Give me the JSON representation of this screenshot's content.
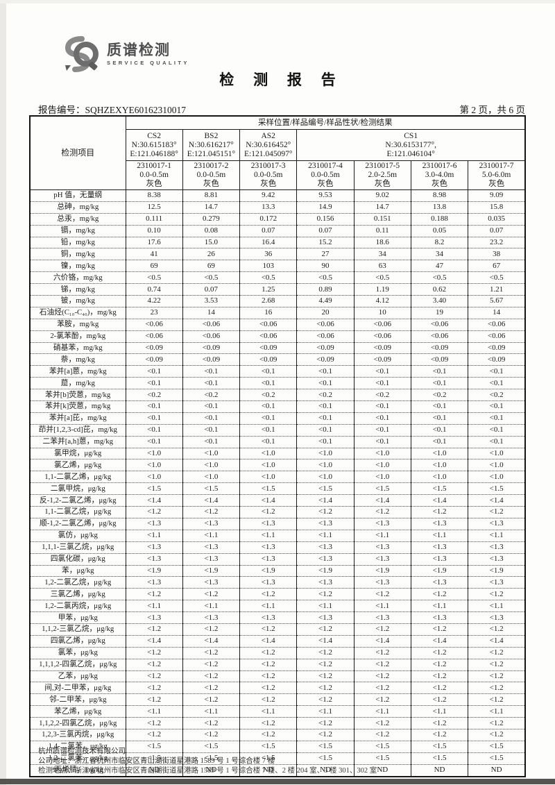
{
  "logo": {
    "mark": "SQ",
    "name_cn": "质谱检测",
    "name_en": "SERVICE QUALITY",
    "mark_color": "#8a8a8a",
    "mark_dark": "#5c5c5c"
  },
  "page": {
    "title": "检 测 报 告",
    "report_no_label": "报告编号：",
    "report_no": "SQHZEXYE60162310017",
    "page_info": "第 2 页，共 6 页"
  },
  "table": {
    "header": {
      "item_col": "检测项目",
      "span_title": "采样位置/样品编号/样品性状/检测结果",
      "locations": [
        {
          "name": "CS2",
          "lat": "N:30.615183°",
          "lon": "E:121.046188°",
          "span": 1
        },
        {
          "name": "BS2",
          "lat": "N:30.616217°",
          "lon": "E:121.045151°",
          "span": 1
        },
        {
          "name": "AS2",
          "lat": "N:30.616452°",
          "lon": "E:121.045097°",
          "span": 1
        },
        {
          "name": "CS1",
          "lat": "N:30.6153177°,",
          "lon": "E:121.046104°",
          "span": 4
        }
      ],
      "samples": [
        {
          "id": "2310017-1",
          "depth": "0.0-0.5m",
          "color": "灰色"
        },
        {
          "id": "2310017-2",
          "depth": "0.0-0.5m",
          "color": "灰色"
        },
        {
          "id": "2310017-3",
          "depth": "0.0-0.5m",
          "color": "灰色"
        },
        {
          "id": "2310017-4",
          "depth": "0.0-0.5m",
          "color": "灰色"
        },
        {
          "id": "2310017-5",
          "depth": "2.0-2.5m",
          "color": "灰色"
        },
        {
          "id": "2310017-6",
          "depth": "3.0-4.0m",
          "color": "灰色"
        },
        {
          "id": "2310017-7",
          "depth": "5.0-6.0m",
          "color": "灰色"
        }
      ]
    },
    "rows": [
      {
        "label": "pH 值，无量纲",
        "values": [
          "8.38",
          "8.81",
          "9.42",
          "9.53",
          "9.02",
          "8.98",
          "9.09"
        ]
      },
      {
        "label": "总砷，mg/kg",
        "values": [
          "12.5",
          "14.7",
          "13.3",
          "14.9",
          "14.7",
          "13.8",
          "15.8"
        ]
      },
      {
        "label": "总汞，mg/kg",
        "values": [
          "0.111",
          "0.279",
          "0.172",
          "0.156",
          "0.151",
          "0.188",
          "0.035"
        ]
      },
      {
        "label": "镉，mg/kg",
        "values": [
          "0.10",
          "0.08",
          "0.07",
          "0.07",
          "0.11",
          "0.05",
          "0.07"
        ]
      },
      {
        "label": "铅，mg/kg",
        "values": [
          "17.6",
          "15.0",
          "16.4",
          "15.2",
          "18.6",
          "8.2",
          "23.2"
        ]
      },
      {
        "label": "铜，mg/kg",
        "values": [
          "41",
          "26",
          "36",
          "27",
          "34",
          "34",
          "38"
        ]
      },
      {
        "label": "镍，mg/kg",
        "values": [
          "69",
          "69",
          "103",
          "90",
          "63",
          "47",
          "67"
        ]
      },
      {
        "label": "六价铬，mg/kg",
        "values": [
          "<0.5",
          "<0.5",
          "<0.5",
          "<0.5",
          "<0.5",
          "<0.5",
          "<0.5"
        ]
      },
      {
        "label": "锑，mg/kg",
        "values": [
          "0.74",
          "0.07",
          "1.25",
          "0.89",
          "1.19",
          "0.62",
          "1.21"
        ]
      },
      {
        "label": "铍，mg/kg",
        "values": [
          "4.22",
          "3.53",
          "2.68",
          "4.49",
          "4.12",
          "3.40",
          "5.67"
        ]
      },
      {
        "label": "石油烃(C₁₀-C₄₀)，mg/kg",
        "values": [
          "23",
          "14",
          "16",
          "20",
          "10",
          "19",
          "14"
        ]
      },
      {
        "label": "苯胺，mg/kg",
        "values": [
          "<0.06",
          "<0.06",
          "<0.06",
          "<0.06",
          "<0.06",
          "<0.06",
          "<0.06"
        ]
      },
      {
        "label": "2-氯苯酚，mg/kg",
        "values": [
          "<0.06",
          "<0.06",
          "<0.06",
          "<0.06",
          "<0.06",
          "<0.06",
          "<0.06"
        ]
      },
      {
        "label": "硝基苯，mg/kg",
        "values": [
          "<0.09",
          "<0.09",
          "<0.09",
          "<0.09",
          "<0.09",
          "<0.09",
          "<0.09"
        ]
      },
      {
        "label": "萘，mg/kg",
        "values": [
          "<0.09",
          "<0.09",
          "<0.09",
          "<0.09",
          "<0.09",
          "<0.09",
          "<0.09"
        ]
      },
      {
        "label": "苯并[a]蒽，mg/kg",
        "values": [
          "<0.1",
          "<0.1",
          "<0.1",
          "<0.1",
          "<0.1",
          "<0.1",
          "<0.1"
        ]
      },
      {
        "label": "䓛，mg/kg",
        "values": [
          "<0.1",
          "<0.1",
          "<0.1",
          "<0.1",
          "<0.1",
          "<0.1",
          "<0.1"
        ]
      },
      {
        "label": "苯并[b]荧蒽，mg/kg",
        "values": [
          "<0.2",
          "<0.2",
          "<0.2",
          "<0.2",
          "<0.2",
          "<0.2",
          "<0.2"
        ]
      },
      {
        "label": "苯并[k]荧蒽，mg/kg",
        "values": [
          "<0.1",
          "<0.1",
          "<0.1",
          "<0.1",
          "<0.1",
          "<0.1",
          "<0.1"
        ]
      },
      {
        "label": "苯并[a]芘，mg/kg",
        "values": [
          "<0.1",
          "<0.1",
          "<0.1",
          "<0.1",
          "<0.1",
          "<0.1",
          "<0.1"
        ]
      },
      {
        "label": "茚并[1,2,3-cd]芘，mg/kg",
        "values": [
          "<0.1",
          "<0.1",
          "<0.1",
          "<0.1",
          "<0.1",
          "<0.1",
          "<0.1"
        ]
      },
      {
        "label": "二苯并[a,h]蒽，mg/kg",
        "values": [
          "<0.1",
          "<0.1",
          "<0.1",
          "<0.1",
          "<0.1",
          "<0.1",
          "<0.1"
        ]
      },
      {
        "label": "氯甲烷，μg/kg",
        "values": [
          "<1.0",
          "<1.0",
          "<1.0",
          "<1.0",
          "<1.0",
          "<1.0",
          "<1.0"
        ]
      },
      {
        "label": "氯乙烯，μg/kg",
        "values": [
          "<1.0",
          "<1.0",
          "<1.0",
          "<1.0",
          "<1.0",
          "<1.0",
          "<1.0"
        ]
      },
      {
        "label": "1,1-二氯乙烯，μg/kg",
        "values": [
          "<1.0",
          "<1.0",
          "<1.0",
          "<1.0",
          "<1.0",
          "<1.0",
          "<1.0"
        ]
      },
      {
        "label": "二氯甲烷，μg/kg",
        "values": [
          "<1.5",
          "<1.5",
          "<1.5",
          "<1.5",
          "<1.5",
          "<1.5",
          "<1.5"
        ]
      },
      {
        "label": "反-1,2-二氯乙烯，μg/kg",
        "values": [
          "<1.4",
          "<1.4",
          "<1.4",
          "<1.4",
          "<1.4",
          "<1.4",
          "<1.4"
        ]
      },
      {
        "label": "1,1-二氯乙烷，μg/kg",
        "values": [
          "<1.2",
          "<1.2",
          "<1.2",
          "<1.2",
          "<1.2",
          "<1.2",
          "<1.2"
        ]
      },
      {
        "label": "顺-1,2-二氯乙烯，μg/kg",
        "values": [
          "<1.3",
          "<1.3",
          "<1.3",
          "<1.3",
          "<1.3",
          "<1.3",
          "<1.3"
        ]
      },
      {
        "label": "氯仿，μg/kg",
        "values": [
          "<1.1",
          "<1.1",
          "<1.1",
          "<1.1",
          "<1.1",
          "<1.1",
          "<1.1"
        ]
      },
      {
        "label": "1,1,1-三氯乙烷，μg/kg",
        "values": [
          "<1.3",
          "<1.3",
          "<1.3",
          "<1.3",
          "<1.3",
          "<1.3",
          "<1.3"
        ]
      },
      {
        "label": "四氯化碳，μg/kg",
        "values": [
          "<1.3",
          "<1.3",
          "<1.3",
          "<1.3",
          "<1.3",
          "<1.3",
          "<1.3"
        ]
      },
      {
        "label": "苯，μg/kg",
        "values": [
          "<1.9",
          "<1.9",
          "<1.9",
          "<1.9",
          "<1.9",
          "<1.9",
          "<1.9"
        ]
      },
      {
        "label": "1,2-二氯乙烷，μg/kg",
        "values": [
          "<1.3",
          "<1.3",
          "<1.3",
          "<1.3",
          "<1.3",
          "<1.3",
          "<1.3"
        ]
      },
      {
        "label": "三氯乙烯，μg/kg",
        "values": [
          "<1.2",
          "<1.2",
          "<1.2",
          "<1.2",
          "<1.2",
          "<1.2",
          "<1.2"
        ]
      },
      {
        "label": "1,2-二氯丙烷，μg/kg",
        "values": [
          "<1.1",
          "<1.1",
          "<1.1",
          "<1.1",
          "<1.1",
          "<1.1",
          "<1.1"
        ]
      },
      {
        "label": "甲苯，μg/kg",
        "values": [
          "<1.3",
          "<1.3",
          "<1.3",
          "<1.3",
          "<1.3",
          "<1.3",
          "<1.3"
        ]
      },
      {
        "label": "1,1,2-三氯乙烷，μg/kg",
        "values": [
          "<1.2",
          "<1.2",
          "<1.2",
          "<1.2",
          "<1.2",
          "<1.2",
          "<1.2"
        ]
      },
      {
        "label": "四氯乙烯，μg/kg",
        "values": [
          "<1.4",
          "<1.4",
          "<1.4",
          "<1.4",
          "<1.4",
          "<1.4",
          "<1.4"
        ]
      },
      {
        "label": "氯苯，μg/kg",
        "values": [
          "<1.2",
          "<1.2",
          "<1.2",
          "<1.2",
          "<1.2",
          "<1.2",
          "<1.2"
        ]
      },
      {
        "label": "1,1,1,2-四氯乙烷，μg/kg",
        "values": [
          "<1.2",
          "<1.2",
          "<1.2",
          "<1.2",
          "<1.2",
          "<1.2",
          "<1.2"
        ]
      },
      {
        "label": "乙苯，μg/kg",
        "values": [
          "<1.2",
          "<1.2",
          "<1.2",
          "<1.2",
          "<1.2",
          "<1.2",
          "<1.2"
        ]
      },
      {
        "label": "间,对-二甲苯，μg/kg",
        "values": [
          "<1.2",
          "<1.2",
          "<1.2",
          "<1.2",
          "<1.2",
          "<1.2",
          "<1.2"
        ]
      },
      {
        "label": "邻-二甲苯，μg/kg",
        "values": [
          "<1.2",
          "<1.2",
          "<1.2",
          "<1.2",
          "<1.2",
          "<1.2",
          "<1.2"
        ]
      },
      {
        "label": "苯乙烯，μg/kg",
        "values": [
          "<1.1",
          "<1.1",
          "<1.1",
          "<1.1",
          "<1.1",
          "<1.1",
          "<1.1"
        ]
      },
      {
        "label": "1,1,2,2-四氯乙烷，μg/kg",
        "values": [
          "<1.2",
          "<1.2",
          "<1.2",
          "<1.2",
          "<1.2",
          "<1.2",
          "<1.2"
        ]
      },
      {
        "label": "1,2,3-三氯丙烷，μg/kg",
        "values": [
          "<1.2",
          "<1.2",
          "<1.2",
          "<1.2",
          "<1.2",
          "<1.2",
          "<1.2"
        ]
      },
      {
        "label": "1,4-二氯苯，μg/kg",
        "values": [
          "<1.5",
          "<1.5",
          "<1.5",
          "<1.5",
          "<1.5",
          "<1.5",
          "<1.5"
        ]
      },
      {
        "label": "1,2-二氯苯，μg/kg",
        "values": [
          "<1.5",
          "<1.5",
          "<1.5",
          "<1.5",
          "<1.5",
          "<1.5",
          "<1.5"
        ]
      },
      {
        "label": "ᵃ丙烯腈，mg/kg",
        "values": [
          "ND",
          "ND",
          "ND",
          "ND",
          "ND",
          "ND",
          "ND"
        ]
      }
    ]
  },
  "footer": {
    "company": "杭州质谱检测技术有限公司",
    "address": "公司地址：浙江省杭州市临安区青山湖街道星港路 1589 号 1 号综合楼 7 楼",
    "test_site": "检测地点：浙江省杭州市临安区青山湖街道星港路 1589 号 1 号综合楼 7 楼、2 楼 204 室、3 楼 301、302 室"
  }
}
